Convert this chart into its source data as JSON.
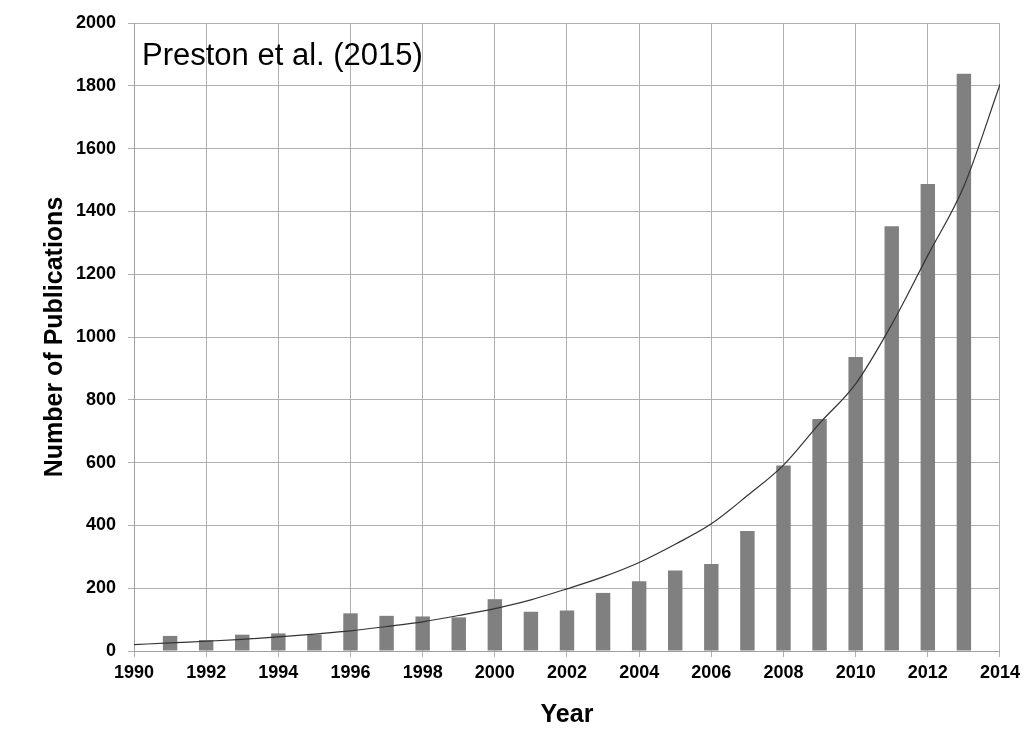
{
  "chart_data": {
    "type": "bar",
    "xlabel": "Year",
    "ylabel": "Number of Publications",
    "annotations": [
      "Preston et al. (2015)"
    ],
    "x": [
      1991,
      1992,
      1993,
      1994,
      1995,
      1996,
      1997,
      1998,
      1999,
      2000,
      2001,
      2002,
      2003,
      2004,
      2005,
      2006,
      2007,
      2008,
      2009,
      2010,
      2011,
      2012,
      2013
    ],
    "series": [
      {
        "color": "#808080",
        "values": [
          48,
          35,
          52,
          56,
          52,
          120,
          112,
          110,
          107,
          165,
          125,
          129,
          185,
          222,
          256,
          277,
          382,
          591,
          739,
          936,
          1353,
          1487,
          1838
        ]
      },
      {
        "type": "line",
        "color": "#333333",
        "x": [
          1990,
          1991,
          1992,
          1993,
          1994,
          1995,
          1996,
          1997,
          1998,
          1999,
          2000,
          2001,
          2002,
          2003,
          2004,
          2005,
          2006,
          2007,
          2008,
          2009,
          2010,
          2011,
          2012,
          2013,
          2014
        ],
        "values": [
          20,
          26,
          31,
          37,
          45,
          54,
          64,
          78,
          93,
          113,
          135,
          163,
          198,
          236,
          282,
          340,
          405,
          495,
          592,
          725,
          851,
          1040,
          1260,
          1480,
          1804
        ]
      }
    ],
    "xlim": [
      1990,
      2014
    ],
    "xticks": [
      1990,
      1992,
      1994,
      1996,
      1998,
      2000,
      2002,
      2004,
      2006,
      2008,
      2010,
      2012,
      2014
    ],
    "ylim": [
      0,
      2000
    ],
    "yticks": [
      0,
      200,
      400,
      600,
      800,
      1000,
      1200,
      1400,
      1600,
      1800,
      2000
    ],
    "grid": true,
    "marker": "none"
  }
}
